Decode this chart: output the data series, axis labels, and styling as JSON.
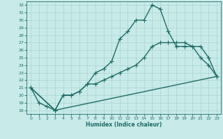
{
  "xlabel": "Humidex (Indice chaleur)",
  "xlim": [
    -0.5,
    23.5
  ],
  "ylim": [
    17.5,
    32.5
  ],
  "xticks": [
    0,
    1,
    2,
    3,
    4,
    5,
    6,
    7,
    8,
    9,
    10,
    11,
    12,
    13,
    14,
    15,
    16,
    17,
    18,
    19,
    20,
    21,
    22,
    23
  ],
  "yticks": [
    18,
    19,
    20,
    21,
    22,
    23,
    24,
    25,
    26,
    27,
    28,
    29,
    30,
    31,
    32
  ],
  "background_color": "#c8ebe8",
  "line_color": "#1e6b65",
  "grid_color": "#a8d4d0",
  "line1_x": [
    0,
    1,
    2,
    3,
    4,
    5,
    6,
    7,
    8,
    9,
    10,
    11,
    12,
    13,
    14,
    15,
    16,
    17,
    18,
    19,
    20,
    21,
    22,
    23
  ],
  "line1_y": [
    21.0,
    19.0,
    18.5,
    18.0,
    20.0,
    20.0,
    20.5,
    21.5,
    23.0,
    23.5,
    24.5,
    27.5,
    28.5,
    30.0,
    30.0,
    32.0,
    31.5,
    28.5,
    26.5,
    26.5,
    26.5,
    25.0,
    24.0,
    22.5
  ],
  "line2_x": [
    0,
    3,
    4,
    5,
    6,
    7,
    8,
    9,
    10,
    11,
    12,
    13,
    14,
    15,
    16,
    17,
    18,
    19,
    20,
    21,
    22,
    23
  ],
  "line2_y": [
    21.0,
    18.0,
    20.0,
    20.0,
    20.5,
    21.5,
    21.5,
    22.0,
    22.5,
    23.0,
    23.5,
    24.0,
    25.0,
    26.5,
    27.0,
    27.0,
    27.0,
    27.0,
    26.5,
    26.5,
    25.0,
    22.5
  ],
  "line3_x": [
    0,
    3,
    23
  ],
  "line3_y": [
    21.0,
    18.0,
    22.5
  ],
  "markersize": 3,
  "linewidth": 1.0
}
